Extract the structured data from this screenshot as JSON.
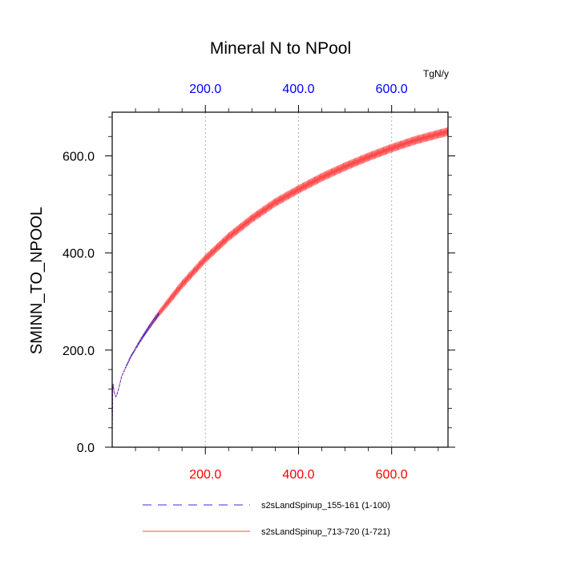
{
  "chart_data": {
    "type": "line",
    "title": "Mineral N to NPool",
    "ylabel": "SMINN_TO_NPOOL",
    "units": "TgN/y",
    "xlim": [
      0,
      721
    ],
    "ylim": [
      0,
      690
    ],
    "x_ticks": [
      200,
      400,
      600
    ],
    "x_tick_labels": [
      "200.0",
      "400.0",
      "600.0"
    ],
    "y_ticks": [
      0,
      200,
      400,
      600
    ],
    "y_tick_labels": [
      "0.0",
      "200.0",
      "400.0",
      "600.0"
    ],
    "grid": "vertical dotted at major x ticks",
    "colors": {
      "run1": "#3b2fd6",
      "run2": "#ff4a4a",
      "top_axis": "#0000ff",
      "bottom_axis": "#ff0000"
    },
    "series": [
      {
        "name": "s2sLandSpinup_155-161 (1-100)",
        "style": "dashed",
        "x": [
          0,
          1,
          2,
          4,
          6,
          8,
          10,
          15,
          20,
          30,
          40,
          50,
          60,
          70,
          80,
          90,
          100
        ],
        "values": [
          30,
          115,
          130,
          115,
          108,
          104,
          108,
          125,
          145,
          167,
          186,
          203,
          219,
          234,
          248,
          262,
          275
        ]
      },
      {
        "name": "s2sLandSpinup_713-720 (1-721)",
        "style": "solid",
        "x": [
          0,
          1,
          2,
          4,
          6,
          8,
          10,
          15,
          20,
          30,
          40,
          50,
          60,
          70,
          80,
          90,
          100,
          150,
          200,
          250,
          300,
          350,
          400,
          450,
          500,
          550,
          600,
          650,
          700,
          721
        ],
        "values": [
          30,
          115,
          130,
          115,
          108,
          104,
          108,
          125,
          145,
          167,
          186,
          203,
          219,
          234,
          248,
          262,
          275,
          335,
          388,
          433,
          471,
          504,
          531,
          556,
          578,
          598,
          616,
          632,
          645,
          650
        ]
      }
    ]
  }
}
